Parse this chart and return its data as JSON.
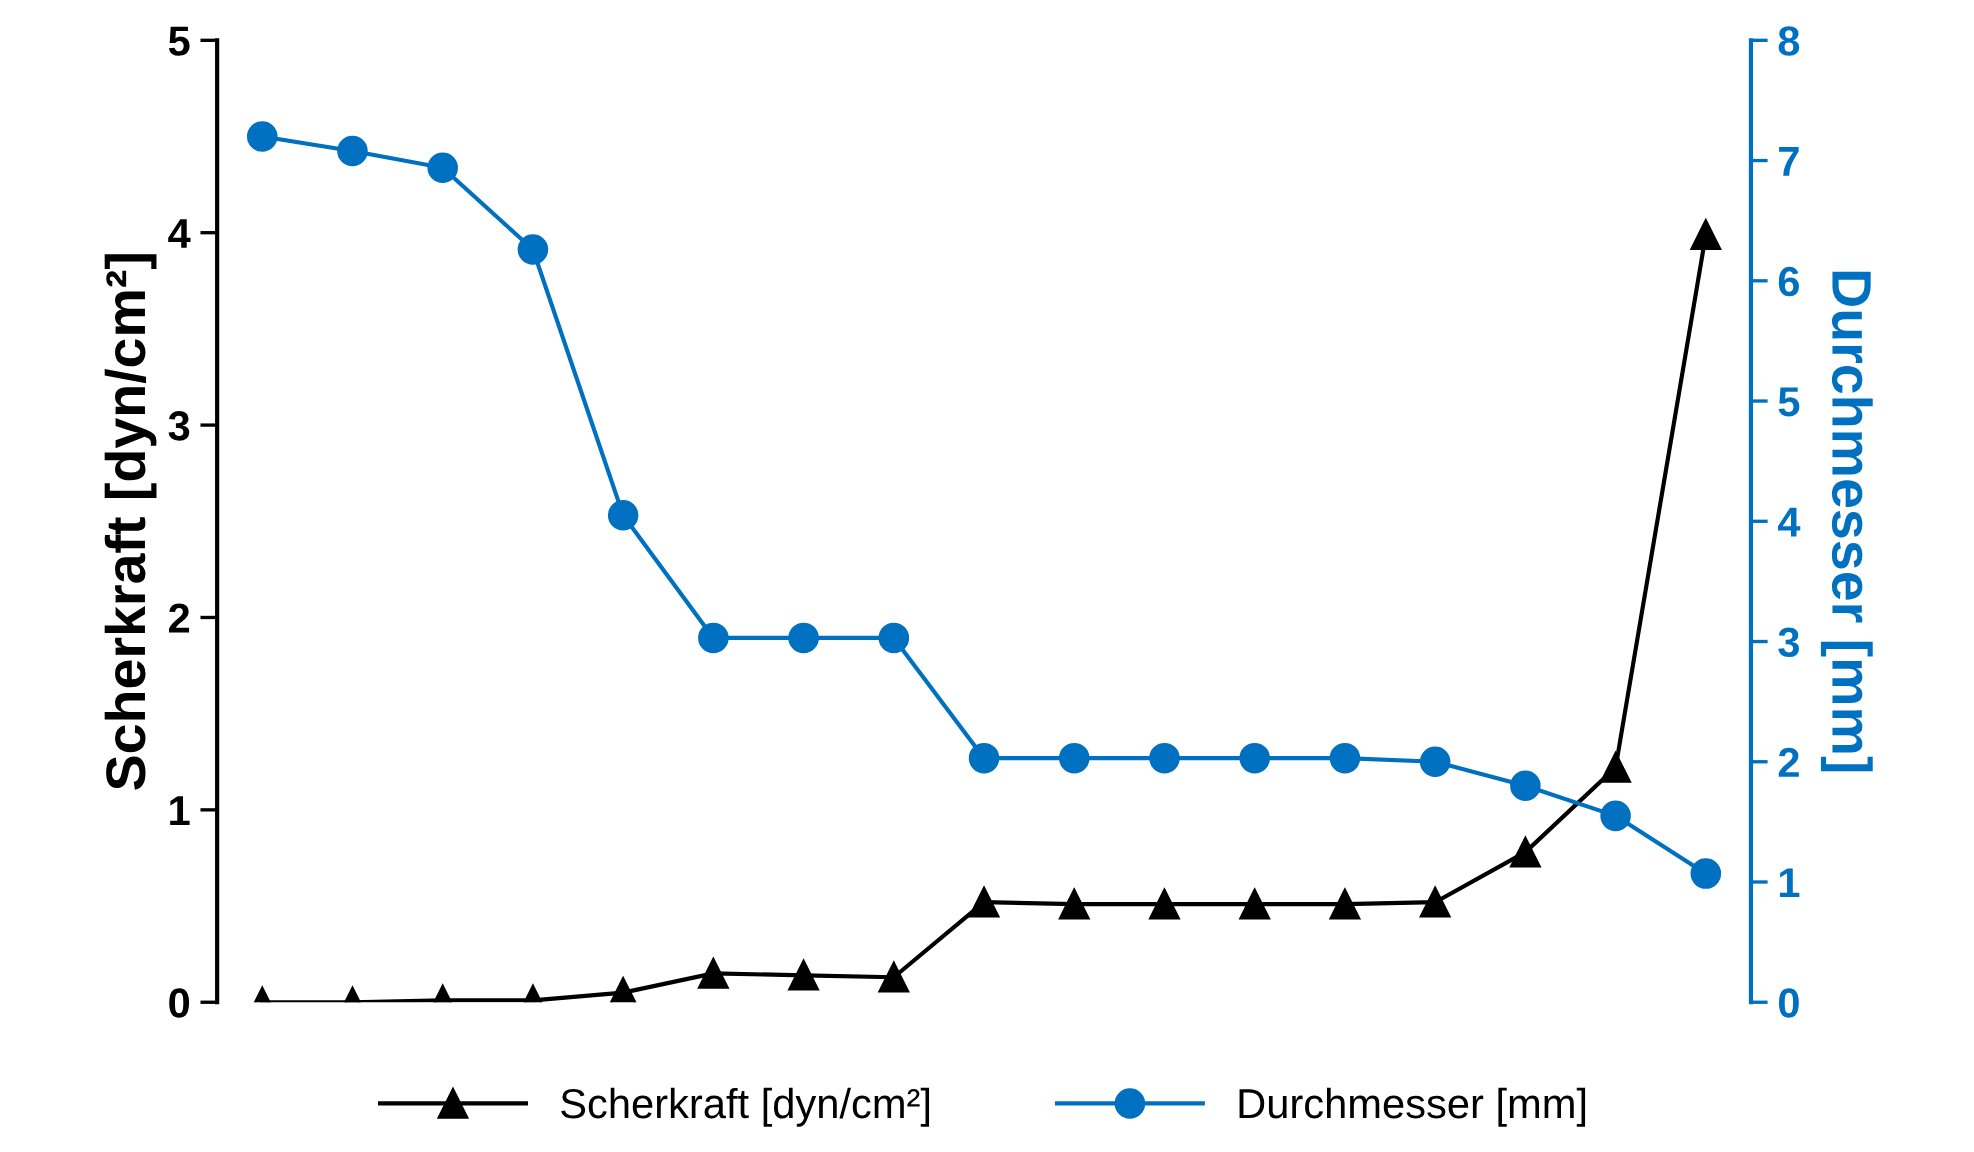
{
  "chart_data": {
    "type": "line",
    "categories": [
      null,
      null,
      null,
      null,
      null,
      null,
      null,
      null,
      null,
      null,
      null,
      null,
      null,
      null,
      null,
      null,
      null
    ],
    "ylabel": "Scherkraft [dyn/cm²]",
    "y2label": "Durchmesser [mm]",
    "ylim": [
      0,
      5
    ],
    "yticks": [
      0,
      1,
      2,
      3,
      4,
      5
    ],
    "y2lim": [
      0,
      8
    ],
    "y2ticks": [
      0,
      1,
      2,
      3,
      4,
      5,
      6,
      7,
      8
    ],
    "grid": false,
    "legend": "bottom",
    "tick_labels": "y",
    "series": [
      {
        "name": "Scherkraft [dyn/cm²]",
        "color": "#000000",
        "marker": "triangle",
        "values": [
          0,
          0,
          0.01,
          0.01,
          0.05,
          0.15,
          0.14,
          0.13,
          0.52,
          0.51,
          0.51,
          0.51,
          0.51,
          0.52,
          0.78,
          1.22,
          3.99
        ]
      },
      {
        "name": "Durchmesser [mm]",
        "color": "#0070c0",
        "marker": "circle",
        "axis": "y2",
        "values": [
          7.2,
          7.08,
          6.94,
          6.26,
          4.05,
          3.03,
          3.03,
          3.03,
          2.03,
          2.03,
          2.03,
          2.03,
          2.03,
          2.0,
          1.8,
          1.55,
          1.07
        ]
      }
    ]
  }
}
